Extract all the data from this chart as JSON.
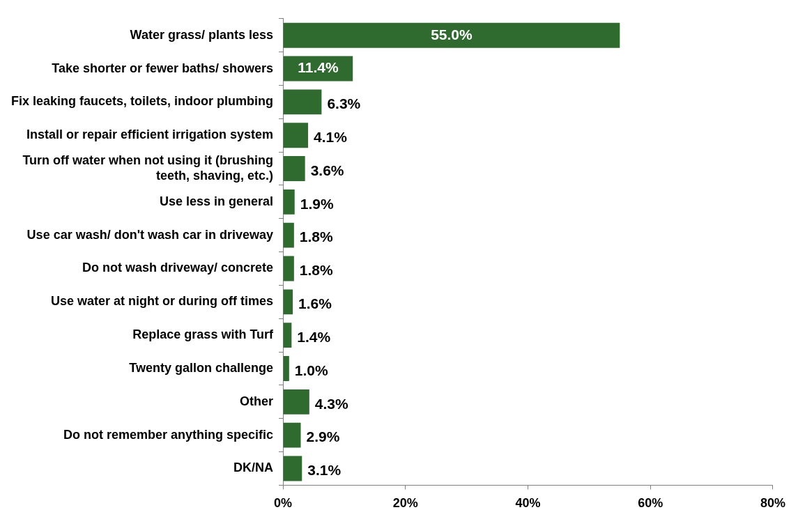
{
  "chart_data": {
    "type": "bar",
    "orientation": "horizontal",
    "categories": [
      "Water grass/ plants less",
      "Take shorter or fewer baths/ showers",
      "Fix leaking faucets, toilets, indoor plumbing",
      "Install or repair efficient irrigation system",
      "Turn off water when not using it (brushing teeth, shaving, etc.)",
      "Use less in general",
      "Use car wash/ don't wash car in driveway",
      "Do not wash driveway/ concrete",
      "Use water at night or during off times",
      "Replace grass with Turf",
      "Twenty gallon challenge",
      "Other",
      "Do not remember anything specific",
      "DK/NA"
    ],
    "values": [
      55.0,
      11.4,
      6.3,
      4.1,
      3.6,
      1.9,
      1.8,
      1.8,
      1.6,
      1.4,
      1.0,
      4.3,
      2.9,
      3.1
    ],
    "value_labels": [
      "55.0%",
      "11.4%",
      "6.3%",
      "4.1%",
      "3.6%",
      "1.9%",
      "1.8%",
      "1.8%",
      "1.6%",
      "1.4%",
      "1.0%",
      "4.3%",
      "2.9%",
      "3.1%"
    ],
    "color": "#2f6b2f",
    "xlim": [
      0,
      80
    ],
    "xticks": [
      {
        "value": 0,
        "label": "0%"
      },
      {
        "value": 20,
        "label": "20%"
      },
      {
        "value": 40,
        "label": "40%"
      },
      {
        "value": 60,
        "label": "60%"
      },
      {
        "value": 80,
        "label": "80%"
      }
    ],
    "grid": false,
    "legend": false
  }
}
